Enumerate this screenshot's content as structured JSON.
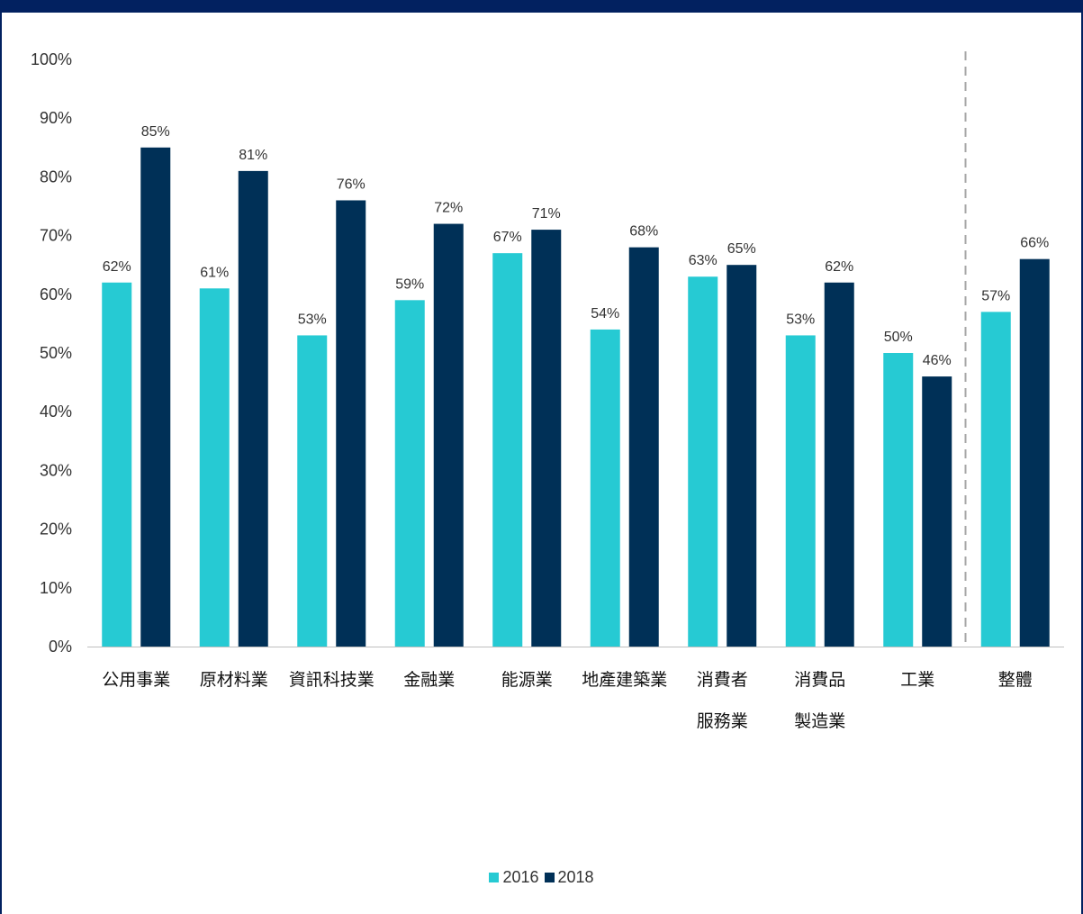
{
  "chart_data": {
    "type": "bar",
    "categories": [
      [
        "公用事業"
      ],
      [
        "原材料業"
      ],
      [
        "資訊科技業"
      ],
      [
        "金融業"
      ],
      [
        "能源業"
      ],
      [
        "地產建築業"
      ],
      [
        "消費者",
        "服務業"
      ],
      [
        "消費品",
        "製造業"
      ],
      [
        "工業"
      ],
      [
        "整體"
      ]
    ],
    "series": [
      {
        "name": "2016",
        "color": "#26CAD3",
        "values": [
          62,
          61,
          53,
          59,
          67,
          54,
          63,
          53,
          50,
          57
        ]
      },
      {
        "name": "2018",
        "color": "#003057",
        "values": [
          85,
          81,
          76,
          72,
          71,
          68,
          65,
          62,
          46,
          66
        ]
      }
    ],
    "value_labels": {
      "2016": [
        "62%",
        "61%",
        "53%",
        "59%",
        "67%",
        "54%",
        "63%",
        "53%",
        "50%",
        "57%"
      ],
      "2018": [
        "85%",
        "81%",
        "76%",
        "72%",
        "71%",
        "68%",
        "65%",
        "62%",
        "46%",
        "66%"
      ]
    },
    "ylim": [
      0,
      100
    ],
    "yticks": [
      "0%",
      "10%",
      "20%",
      "30%",
      "40%",
      "50%",
      "60%",
      "70%",
      "80%",
      "90%",
      "100%"
    ],
    "separator_before_category": 9,
    "legend_position": "bottom-center",
    "grid": false
  },
  "legend": {
    "items": [
      {
        "label": "2016",
        "color": "#26CAD3"
      },
      {
        "label": "2018",
        "color": "#003057"
      }
    ]
  },
  "frame_color": "#022160"
}
